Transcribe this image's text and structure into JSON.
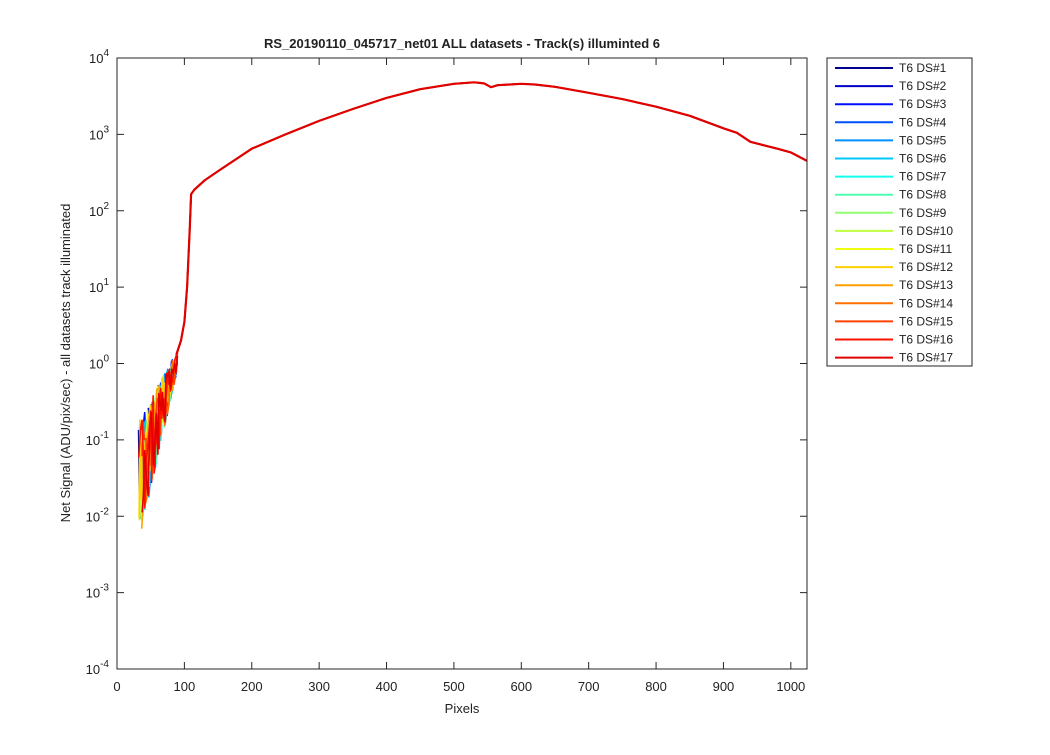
{
  "chart_data": {
    "type": "line",
    "title": "RS_20190110_045717_net01 ALL datasets - Track(s) illuminted 6",
    "xlabel": "Pixels",
    "ylabel": "Net Signal (ADU/pix/sec) - all datasets track illuminated",
    "xlim": [
      0,
      1024
    ],
    "ylim": [
      0.0001,
      10000
    ],
    "yscale": "log",
    "grid": false,
    "legend_position": "outside-top-right",
    "x_ticks": [
      0,
      100,
      200,
      300,
      400,
      500,
      600,
      700,
      800,
      900,
      1000
    ],
    "x_tick_labels": [
      "0",
      "100",
      "200",
      "300",
      "400",
      "500",
      "600",
      "700",
      "800",
      "900",
      "1000"
    ],
    "y_ticks": [
      {
        "value": 0.0001,
        "base": "10",
        "exp": "-4"
      },
      {
        "value": 0.001,
        "base": "10",
        "exp": "-3"
      },
      {
        "value": 0.01,
        "base": "10",
        "exp": "-2"
      },
      {
        "value": 0.1,
        "base": "10",
        "exp": "-1"
      },
      {
        "value": 1,
        "base": "10",
        "exp": "0"
      },
      {
        "value": 10,
        "base": "10",
        "exp": "1"
      },
      {
        "value": 100,
        "base": "10",
        "exp": "2"
      },
      {
        "value": 1000,
        "base": "10",
        "exp": "3"
      },
      {
        "value": 10000,
        "base": "10",
        "exp": "4"
      }
    ],
    "series": [
      {
        "name": "T6 DS#1",
        "color": "#00008f"
      },
      {
        "name": "T6 DS#2",
        "color": "#0000c8"
      },
      {
        "name": "T6 DS#3",
        "color": "#0010ff"
      },
      {
        "name": "T6 DS#4",
        "color": "#0050ff"
      },
      {
        "name": "T6 DS#5",
        "color": "#0090ff"
      },
      {
        "name": "T6 DS#6",
        "color": "#00c8ff"
      },
      {
        "name": "T6 DS#7",
        "color": "#10ffef"
      },
      {
        "name": "T6 DS#8",
        "color": "#50ffaf"
      },
      {
        "name": "T6 DS#9",
        "color": "#8fff70"
      },
      {
        "name": "T6 DS#10",
        "color": "#bfff40"
      },
      {
        "name": "T6 DS#11",
        "color": "#efff10"
      },
      {
        "name": "T6 DS#12",
        "color": "#ffd000"
      },
      {
        "name": "T6 DS#13",
        "color": "#ffa000"
      },
      {
        "name": "T6 DS#14",
        "color": "#ff7000"
      },
      {
        "name": "T6 DS#15",
        "color": "#ff4000"
      },
      {
        "name": "T6 DS#16",
        "color": "#ff1000"
      },
      {
        "name": "T6 DS#17",
        "color": "#e00000"
      }
    ],
    "main_curve": {
      "x": [
        88,
        95,
        100,
        104,
        108,
        110,
        115,
        130,
        150,
        200,
        250,
        300,
        350,
        400,
        450,
        500,
        530,
        545,
        555,
        565,
        600,
        620,
        650,
        700,
        750,
        800,
        850,
        900,
        920,
        940,
        960,
        980,
        1000,
        1024
      ],
      "y": [
        1.3,
        2,
        3.5,
        10,
        60,
        165,
        190,
        250,
        330,
        650,
        1000,
        1500,
        2150,
        3000,
        3900,
        4600,
        4800,
        4650,
        4150,
        4400,
        4600,
        4500,
        4200,
        3500,
        2900,
        2300,
        1750,
        1200,
        1050,
        800,
        720,
        650,
        580,
        450
      ]
    },
    "noise_region_x": [
      30,
      90
    ]
  }
}
